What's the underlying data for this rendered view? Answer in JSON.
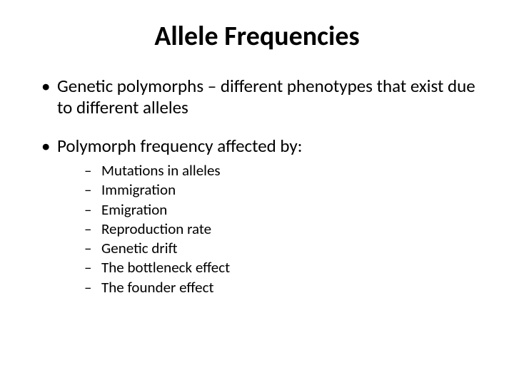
{
  "slide": {
    "title": "Allele Frequencies",
    "title_fontsize": 38,
    "title_fontweight": 700,
    "bullets": [
      {
        "text": "Genetic polymorphs – different phenotypes that exist due to different alleles",
        "fontsize": 25
      },
      {
        "text": "Polymorph frequency affected by:",
        "fontsize": 25,
        "subitems": [
          "Mutations in alleles",
          "Immigration",
          "Emigration",
          "Reproduction rate",
          "Genetic drift",
          "The bottleneck effect",
          "The founder effect"
        ],
        "sub_fontsize": 21
      }
    ],
    "background_color": "#ffffff",
    "text_color": "#000000",
    "font_family": "Calibri"
  }
}
